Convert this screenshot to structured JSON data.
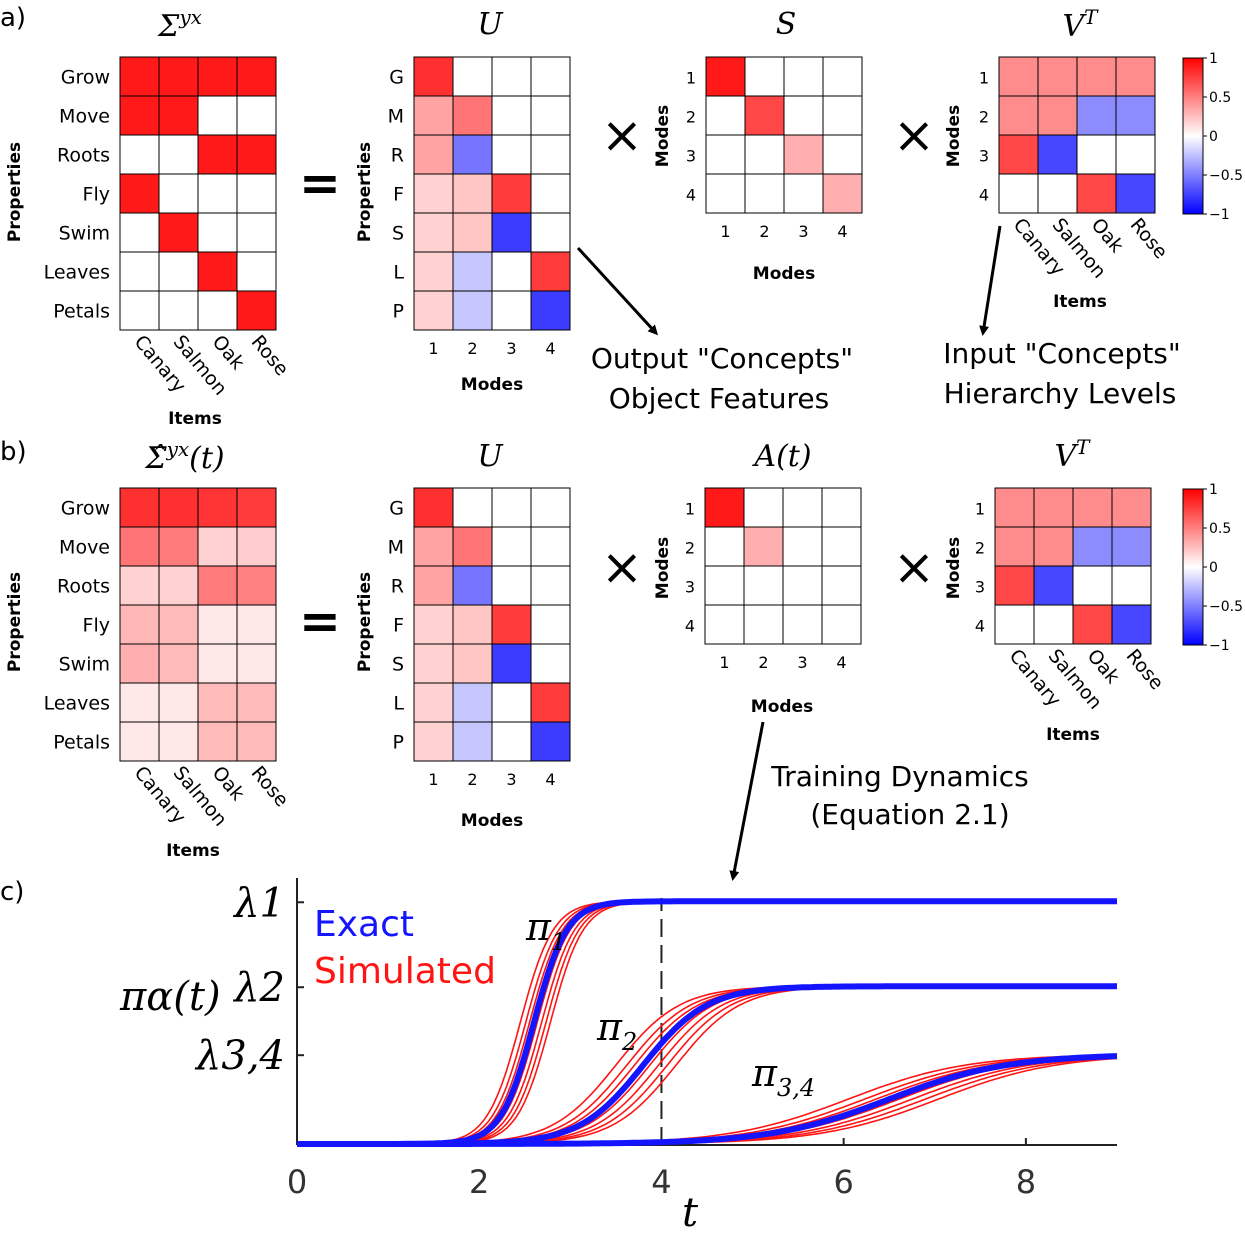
{
  "panels": {
    "a": {
      "label": "a)",
      "sigma_title": "Σ",
      "sigma_sup": "yx",
      "u_title": "U",
      "s_title": "S",
      "v_title": "V",
      "v_sup": "T"
    },
    "b": {
      "label": "b)",
      "sigma_title": "Σ̂",
      "sigma_sup": "yx",
      "sigma_suffix": "(t)",
      "u_title": "U",
      "a_title": "A(t)",
      "v_title": "V",
      "v_sup": "T"
    },
    "c": {
      "label": "c)"
    }
  },
  "common": {
    "properties": [
      "Grow",
      "Move",
      "Roots",
      "Fly",
      "Swim",
      "Leaves",
      "Petals"
    ],
    "property_abbrev": [
      "G",
      "M",
      "R",
      "F",
      "S",
      "L",
      "P"
    ],
    "items": [
      "Canary",
      "Salmon",
      "Oak",
      "Rose"
    ],
    "modes": [
      "1",
      "2",
      "3",
      "4"
    ],
    "properties_label": "Properties",
    "items_label": "Items",
    "modes_label": "Modes",
    "equals": "=",
    "times": "×",
    "colorbar_ticks": [
      "1",
      "0.5",
      "0",
      "−0.5",
      "−1"
    ]
  },
  "matrices": {
    "sigma_a": [
      [
        1,
        1,
        1,
        1
      ],
      [
        1,
        1,
        0,
        0
      ],
      [
        0,
        0,
        1,
        1
      ],
      [
        1,
        0,
        0,
        0
      ],
      [
        0,
        1,
        0,
        0
      ],
      [
        0,
        0,
        1,
        0
      ],
      [
        0,
        0,
        0,
        1
      ]
    ],
    "sigma_b": [
      [
        0.9,
        0.9,
        0.88,
        0.85
      ],
      [
        0.6,
        0.58,
        0.2,
        0.22
      ],
      [
        0.2,
        0.2,
        0.58,
        0.55
      ],
      [
        0.32,
        0.3,
        0.1,
        0.1
      ],
      [
        0.35,
        0.3,
        0.1,
        0.1
      ],
      [
        0.1,
        0.1,
        0.3,
        0.3
      ],
      [
        0.1,
        0.1,
        0.3,
        0.3
      ]
    ],
    "u": [
      [
        0.9,
        0,
        0,
        0
      ],
      [
        0.4,
        0.6,
        0,
        0
      ],
      [
        0.4,
        -0.6,
        0,
        0
      ],
      [
        0.2,
        0.25,
        0.85,
        0
      ],
      [
        0.2,
        0.25,
        -0.85,
        0
      ],
      [
        0.2,
        -0.25,
        0,
        0.85
      ],
      [
        0.2,
        -0.25,
        0,
        -0.85
      ]
    ],
    "s": [
      [
        1,
        0,
        0,
        0
      ],
      [
        0,
        0.8,
        0,
        0
      ],
      [
        0,
        0,
        0.35,
        0
      ],
      [
        0,
        0,
        0,
        0.35
      ]
    ],
    "a_t": [
      [
        1,
        0,
        0,
        0
      ],
      [
        0,
        0.35,
        0,
        0
      ],
      [
        0,
        0,
        0,
        0
      ],
      [
        0,
        0,
        0,
        0
      ]
    ],
    "vt": [
      [
        0.5,
        0.5,
        0.5,
        0.5
      ],
      [
        0.5,
        0.5,
        -0.5,
        -0.5
      ],
      [
        0.8,
        -0.8,
        0,
        0
      ],
      [
        0,
        0,
        0.8,
        -0.8
      ]
    ]
  },
  "annotations": {
    "output_concepts": "Output \"Concepts\"",
    "object_features": "Object Features",
    "input_concepts": "Input \"Concepts\"",
    "hierarchy_levels": "Hierarchy Levels",
    "training_dynamics": "Training Dynamics",
    "equation": "(Equation 2.1)"
  },
  "chart_data": {
    "type": "line",
    "title": "",
    "xlabel": "t",
    "ylabel": "πα(t)",
    "x_ticks": [
      "0",
      "2",
      "4",
      "6",
      "8"
    ],
    "xlim": [
      0,
      9
    ],
    "ylim": [
      0,
      1.1
    ],
    "y_tick_labels": [
      "λ1",
      "λ2",
      "λ3,4"
    ],
    "y_tick_values": [
      1.0,
      0.65,
      0.37
    ],
    "vline_x": 4,
    "legend": [
      "Exact",
      "Simulated"
    ],
    "legend_colors": [
      "#1414ff",
      "#ff1414"
    ],
    "series": [
      {
        "name": "π1",
        "label": "π",
        "subscript": "1",
        "asymptote": 1.0,
        "midpoint": 2.6
      },
      {
        "name": "π2",
        "label": "π",
        "subscript": "2",
        "asymptote": 0.65,
        "midpoint": 3.8
      },
      {
        "name": "π3,4",
        "label": "π",
        "subscript": "3,4",
        "asymptote": 0.37,
        "midpoint": 6.5
      }
    ]
  }
}
